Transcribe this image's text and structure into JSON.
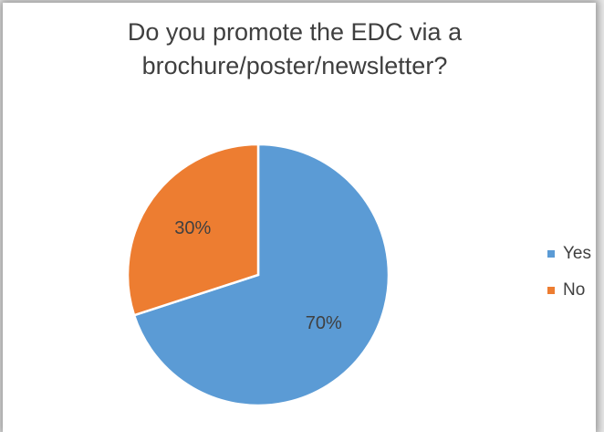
{
  "chart_data": {
    "type": "pie",
    "title_lines": [
      "Do you promote the EDC via a",
      "brochure/poster/newsletter?"
    ],
    "series": [
      {
        "name": "Yes",
        "value": 70,
        "label": "70%",
        "color": "#5b9bd5"
      },
      {
        "name": "No",
        "value": 30,
        "label": "30%",
        "color": "#ed7d31"
      }
    ],
    "legend_position": "right"
  }
}
